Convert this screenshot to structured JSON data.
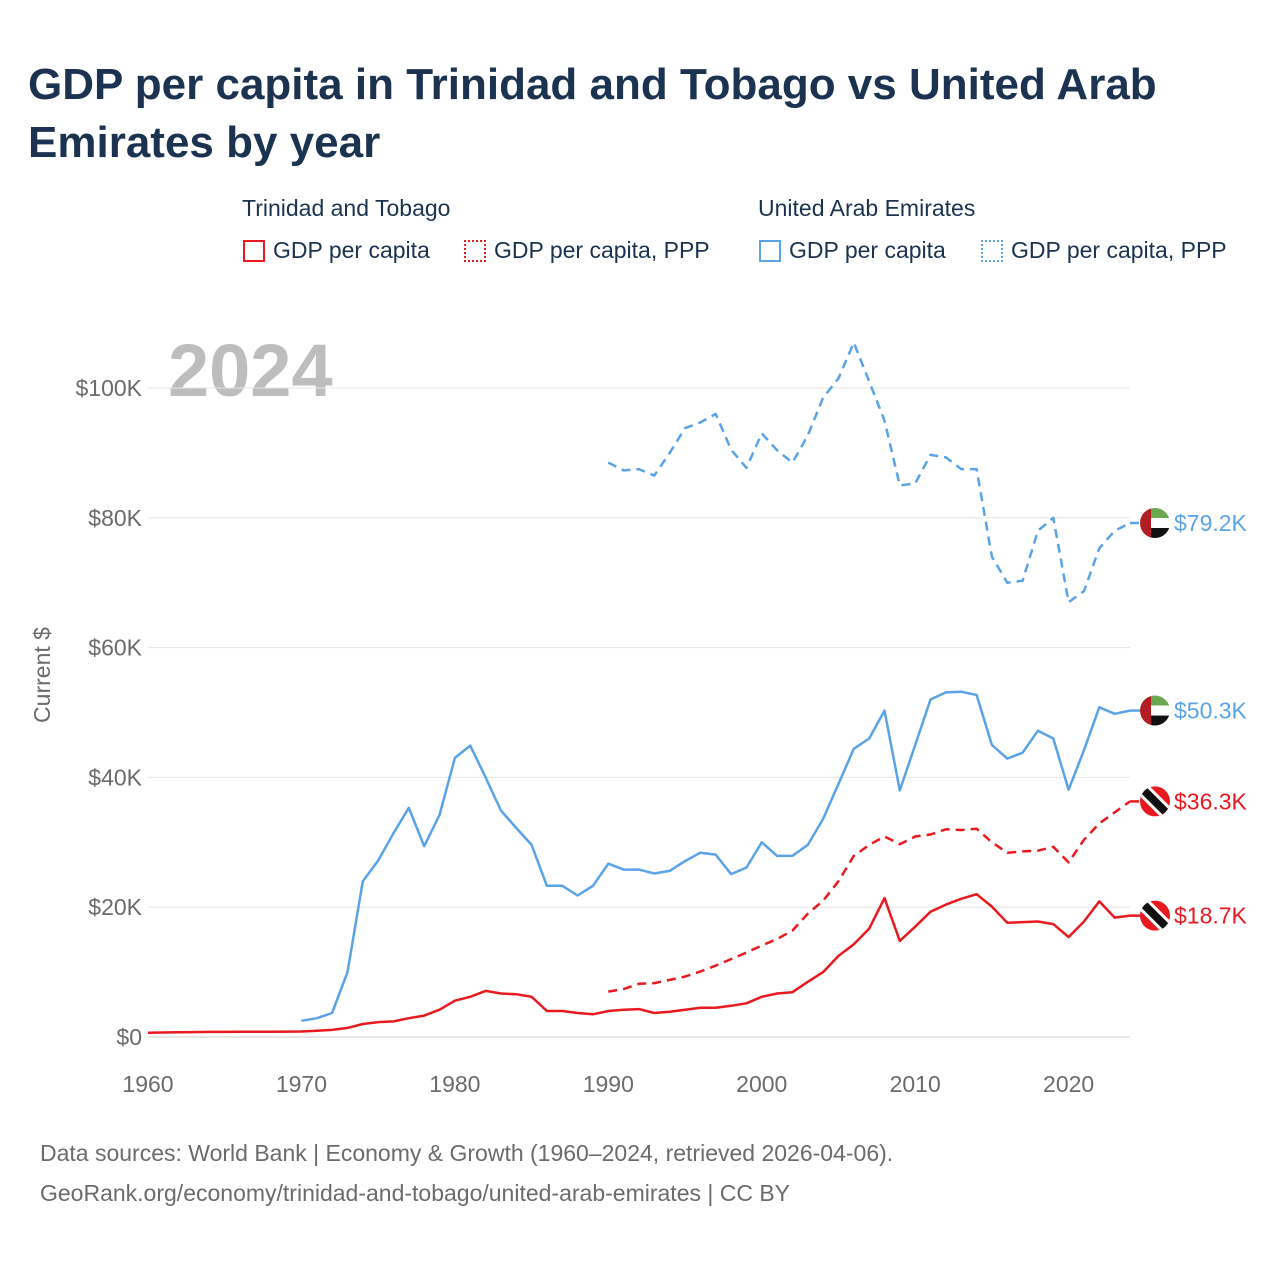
{
  "title": "GDP per capita in Trinidad and Tobago vs United Arab Emirates by year",
  "legend": {
    "groups": [
      {
        "country": "Trinidad and Tobago",
        "color": "#e8191f",
        "items": [
          "GDP per capita",
          "GDP per capita, PPP"
        ]
      },
      {
        "country": "United Arab Emirates",
        "color": "#5aa3e6",
        "items": [
          "GDP per capita",
          "GDP per capita, PPP"
        ]
      }
    ]
  },
  "year_label": "2024",
  "colors": {
    "tt": "#e8191f",
    "uae": "#5aa3e6",
    "grid": "#e6e6e6",
    "axis_text": "#6b6b6b"
  },
  "chart_data": {
    "type": "line",
    "xlabel": "",
    "ylabel": "Current $",
    "xlim": [
      1960,
      2024
    ],
    "ylim": [
      0,
      108000
    ],
    "x_ticks": [
      1960,
      1970,
      1980,
      1990,
      2000,
      2010,
      2020
    ],
    "y_ticks": [
      0,
      20000,
      40000,
      60000,
      80000,
      100000
    ],
    "y_tick_labels": [
      "$0",
      "$20K",
      "$40K",
      "$60K",
      "$80K",
      "$100K"
    ],
    "series": [
      {
        "name": "United Arab Emirates — GDP per capita, PPP",
        "country": "United Arab Emirates",
        "style": "dashed",
        "color": "#5aa3e6",
        "end_label": "$79.2K",
        "x": [
          1990,
          1991,
          1992,
          1993,
          1994,
          1995,
          1996,
          1997,
          1998,
          1999,
          2000,
          2001,
          2002,
          2003,
          2004,
          2005,
          2006,
          2007,
          2008,
          2009,
          2010,
          2011,
          2012,
          2013,
          2014,
          2015,
          2016,
          2017,
          2018,
          2019,
          2020,
          2021,
          2022,
          2023,
          2024
        ],
        "values": [
          88500,
          87300,
          87500,
          86500,
          90000,
          93800,
          94700,
          96000,
          90500,
          87700,
          93000,
          90400,
          88500,
          92700,
          98500,
          101500,
          107000,
          101000,
          95000,
          85000,
          85300,
          89700,
          89300,
          87500,
          87500,
          74000,
          70000,
          70300,
          78000,
          80000,
          67000,
          68700,
          75300,
          78000,
          79200
        ]
      },
      {
        "name": "United Arab Emirates — GDP per capita",
        "country": "United Arab Emirates",
        "style": "solid",
        "color": "#5aa3e6",
        "end_label": "$50.3K",
        "x": [
          1970,
          1971,
          1972,
          1973,
          1974,
          1975,
          1976,
          1977,
          1978,
          1979,
          1980,
          1981,
          1982,
          1983,
          1984,
          1985,
          1986,
          1987,
          1988,
          1989,
          1990,
          1991,
          1992,
          1993,
          1994,
          1995,
          1996,
          1997,
          1998,
          1999,
          2000,
          2001,
          2002,
          2003,
          2004,
          2005,
          2006,
          2007,
          2008,
          2009,
          2010,
          2011,
          2012,
          2013,
          2014,
          2015,
          2016,
          2017,
          2018,
          2019,
          2020,
          2021,
          2022,
          2023,
          2024
        ],
        "values": [
          2500,
          2900,
          3700,
          10000,
          24000,
          27200,
          31400,
          35300,
          29400,
          34200,
          43000,
          44900,
          40000,
          34900,
          32200,
          29600,
          23300,
          23300,
          21800,
          23300,
          26700,
          25800,
          25800,
          25200,
          25600,
          27100,
          28400,
          28100,
          25100,
          26100,
          30000,
          27900,
          27900,
          29600,
          33600,
          39000,
          44400,
          46000,
          50300,
          38000,
          45000,
          52000,
          53100,
          53200,
          52700,
          45000,
          42900,
          43800,
          47200,
          46000,
          38100,
          44200,
          50800,
          49800,
          50300
        ]
      },
      {
        "name": "Trinidad and Tobago — GDP per capita, PPP",
        "country": "Trinidad and Tobago",
        "style": "dashed",
        "color": "#e8191f",
        "end_label": "$36.3K",
        "x": [
          1990,
          1991,
          1992,
          1993,
          1994,
          1995,
          1996,
          1997,
          1998,
          1999,
          2000,
          2001,
          2002,
          2003,
          2004,
          2005,
          2006,
          2007,
          2008,
          2009,
          2010,
          2011,
          2012,
          2013,
          2014,
          2015,
          2016,
          2017,
          2018,
          2019,
          2020,
          2021,
          2022,
          2023,
          2024
        ],
        "values": [
          7000,
          7400,
          8200,
          8300,
          8800,
          9300,
          10100,
          11000,
          12000,
          13000,
          14100,
          15100,
          16400,
          19000,
          21000,
          24000,
          27900,
          29600,
          30900,
          29700,
          30900,
          31200,
          32000,
          31900,
          32100,
          30000,
          28400,
          28600,
          28700,
          29300,
          26900,
          30400,
          32900,
          34600,
          36300
        ]
      },
      {
        "name": "Trinidad and Tobago — GDP per capita",
        "country": "Trinidad and Tobago",
        "style": "solid",
        "color": "#e8191f",
        "end_label": "$18.7K",
        "x": [
          1960,
          1961,
          1962,
          1963,
          1964,
          1965,
          1966,
          1967,
          1968,
          1969,
          1970,
          1971,
          1972,
          1973,
          1974,
          1975,
          1976,
          1977,
          1978,
          1979,
          1980,
          1981,
          1982,
          1983,
          1984,
          1985,
          1986,
          1987,
          1988,
          1989,
          1990,
          1991,
          1992,
          1993,
          1994,
          1995,
          1996,
          1997,
          1998,
          1999,
          2000,
          2001,
          2002,
          2003,
          2004,
          2005,
          2006,
          2007,
          2008,
          2009,
          2010,
          2011,
          2012,
          2013,
          2014,
          2015,
          2016,
          2017,
          2018,
          2019,
          2020,
          2021,
          2022,
          2023,
          2024
        ],
        "values": [
          650,
          700,
          720,
          760,
          780,
          790,
          800,
          810,
          820,
          830,
          850,
          950,
          1100,
          1400,
          2000,
          2300,
          2400,
          2900,
          3300,
          4200,
          5600,
          6200,
          7100,
          6700,
          6600,
          6200,
          4000,
          4000,
          3700,
          3500,
          4000,
          4200,
          4300,
          3700,
          3900,
          4200,
          4500,
          4500,
          4800,
          5200,
          6200,
          6700,
          6900,
          8500,
          10000,
          12500,
          14300,
          16700,
          21400,
          14800,
          17000,
          19300,
          20400,
          21300,
          22000,
          20100,
          17600,
          17700,
          17800,
          17400,
          15400,
          17800,
          20900,
          18400,
          18700
        ]
      }
    ]
  },
  "footer": {
    "line1": "Data sources: World Bank | Economy & Growth (1960–2024, retrieved 2026-04-06).",
    "line2": "GeoRank.org/economy/trinidad-and-tobago/united-arab-emirates | CC BY"
  }
}
